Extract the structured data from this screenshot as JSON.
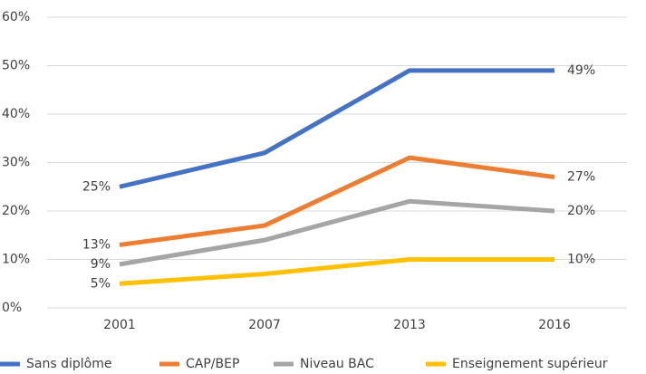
{
  "chart_data": {
    "type": "line",
    "categories": [
      "2001",
      "2007",
      "2013",
      "2016"
    ],
    "series": [
      {
        "name": "Sans diplôme",
        "color": "#4472c4",
        "values": [
          25,
          32,
          49,
          49
        ],
        "value_labels": [
          "25%",
          null,
          null,
          "49%"
        ]
      },
      {
        "name": "CAP/BEP",
        "color": "#ed7d31",
        "values": [
          13,
          17,
          31,
          27
        ],
        "value_labels": [
          "13%",
          null,
          null,
          "27%"
        ]
      },
      {
        "name": "Niveau BAC",
        "color": "#a5a5a5",
        "values": [
          9,
          14,
          22,
          20
        ],
        "value_labels": [
          "9%",
          null,
          null,
          "20%"
        ]
      },
      {
        "name": "Enseignement supérieur",
        "color": "#ffc000",
        "values": [
          5,
          7,
          10,
          10
        ],
        "value_labels": [
          "5%",
          null,
          null,
          "10%"
        ]
      }
    ],
    "ylim": [
      0,
      60
    ],
    "yticks": [
      {
        "value": 0,
        "label": "0%"
      },
      {
        "value": 10,
        "label": "10%"
      },
      {
        "value": 20,
        "label": "20%"
      },
      {
        "value": 30,
        "label": "30%"
      },
      {
        "value": 40,
        "label": "40%"
      },
      {
        "value": 50,
        "label": "50%"
      },
      {
        "value": 60,
        "label": "60%"
      }
    ],
    "grid": true,
    "legend": "bottom"
  }
}
